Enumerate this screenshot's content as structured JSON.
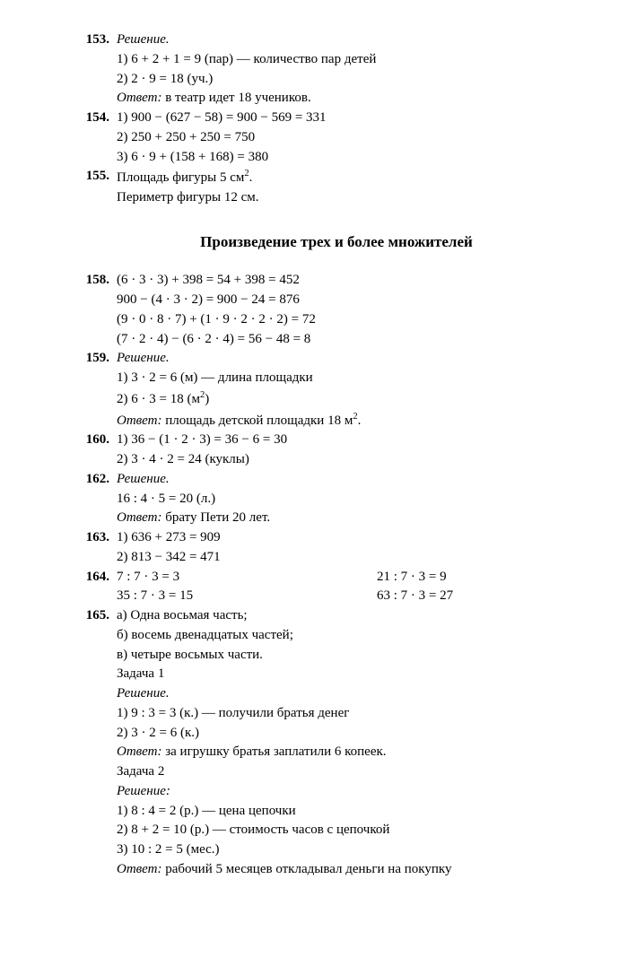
{
  "problems1": [
    {
      "num": "153.",
      "lines": [
        {
          "style": "italic",
          "text": "Решение."
        },
        {
          "text": "1) 6 + 2 + 1 = 9 (пар) — количество пар детей"
        },
        {
          "text": "2) 2 · 9 = 18 (уч.)"
        },
        {
          "prefix_italic": "Ответ:",
          "rest": " в театр идет 18 учеников."
        }
      ]
    },
    {
      "num": "154.",
      "lines": [
        {
          "text": "1) 900 − (627 − 58) = 900 − 569 = 331"
        },
        {
          "text": "2) 250 + 250 + 250 = 750"
        },
        {
          "text": "3) 6 · 9 + (158 + 168) = 380"
        }
      ]
    },
    {
      "num": "155.",
      "lines": [
        {
          "html": "Площадь фигуры 5 см<sup>2</sup>."
        },
        {
          "text": "Периметр фигуры 12 см."
        }
      ]
    }
  ],
  "heading": "Произведение трех и более множителей",
  "problems2": [
    {
      "num": "158.",
      "lines": [
        {
          "text": "(6 · 3 · 3) + 398 = 54 + 398 = 452"
        },
        {
          "text": "900 − (4 · 3 · 2) = 900 − 24 = 876"
        },
        {
          "text": "(9 · 0 · 8 · 7) + (1 · 9 · 2 · 2 · 2) = 72"
        },
        {
          "text": "(7 · 2 · 4) − (6 · 2 · 4) = 56 − 48 = 8"
        }
      ]
    },
    {
      "num": "159.",
      "lines": [
        {
          "style": "italic",
          "text": "Решение."
        },
        {
          "text": "1) 3 · 2 = 6 (м) — длина площадки"
        },
        {
          "html": "2) 6 · 3 = 18 (м<sup>2</sup>)"
        },
        {
          "prefix_italic": "Ответ:",
          "rest_html": " площадь детской площадки 18 м<sup>2</sup>."
        }
      ]
    },
    {
      "num": "160.",
      "lines": [
        {
          "text": "1) 36 − (1 · 2 · 3) = 36 − 6 = 30"
        },
        {
          "text": "2) 3 · 4 · 2 = 24 (куклы)"
        }
      ]
    },
    {
      "num": "162.",
      "lines": [
        {
          "style": "italic",
          "text": "Решение."
        },
        {
          "text": "16 : 4 · 5 = 20 (л.)"
        },
        {
          "prefix_italic": "Ответ:",
          "rest": " брату Пети 20 лет."
        }
      ]
    },
    {
      "num": "163.",
      "lines": [
        {
          "text": "1) 636 + 273 = 909"
        },
        {
          "text": "2) 813 − 342 = 471"
        }
      ]
    },
    {
      "num": "164.",
      "twocol": [
        {
          "left": "7 : 7 · 3 = 3",
          "right": "21 : 7 · 3 = 9"
        },
        {
          "left": "35 : 7 · 3 = 15",
          "right": "63 : 7 · 3 = 27"
        }
      ]
    },
    {
      "num": "165.",
      "lines": [
        {
          "text": "а) Одна восьмая часть;"
        },
        {
          "text": "б) восемь двенадцатых частей;"
        },
        {
          "text": "в) четыре восьмых части."
        },
        {
          "text": "Задача 1"
        },
        {
          "style": "italic",
          "text": "Решение."
        },
        {
          "text": "1) 9 : 3 = 3 (к.) — получили братья денег"
        },
        {
          "text": "2) 3 · 2 = 6 (к.)"
        },
        {
          "prefix_italic": "Ответ:",
          "rest": " за игрушку братья заплатили 6 копеек."
        },
        {
          "text": "Задача 2"
        },
        {
          "style": "italic",
          "text": "Решение:"
        },
        {
          "text": "1) 8 : 4 = 2 (р.) — цена цепочки"
        },
        {
          "text": "2) 8 + 2 = 10 (р.) — стоимость часов с цепочкой"
        },
        {
          "text": "3) 10 : 2 = 5 (мес.)"
        },
        {
          "prefix_italic": "Ответ:",
          "rest": " рабочий 5 месяцев откладывал деньги на покупку"
        }
      ]
    }
  ]
}
